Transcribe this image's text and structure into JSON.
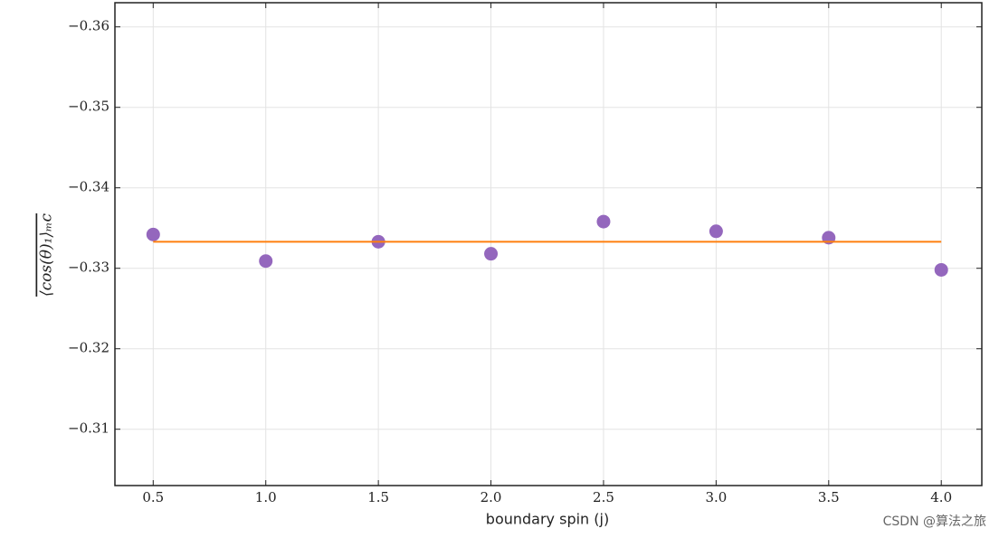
{
  "chart_data": {
    "type": "scatter",
    "xlabel": "boundary spin (j)",
    "ylabel": "⟨cos(θ)₁⟩ₘc",
    "watermark": "CSDN @算法之旅",
    "series": [
      {
        "color": "#9467bd",
        "style": "points",
        "x": [
          0.5,
          1.0,
          1.5,
          2.0,
          2.5,
          3.0,
          3.5,
          4.0
        ],
        "values": [
          -0.3342,
          -0.3309,
          -0.3333,
          -0.3318,
          -0.3358,
          -0.3346,
          -0.3338,
          -0.3298
        ]
      },
      {
        "color": "#ff7f0e",
        "style": "line",
        "x": [
          0.5,
          4.0
        ],
        "values": [
          -0.3333,
          -0.3333
        ]
      }
    ],
    "xlim": [
      0.33,
      4.18
    ],
    "ylim": [
      -0.303,
      -0.363
    ],
    "xticks": [
      {
        "value": 0.5,
        "label": "0.5"
      },
      {
        "value": 1,
        "label": "1.0"
      },
      {
        "value": 1.5,
        "label": "1.5"
      },
      {
        "value": 2,
        "label": "2.0"
      },
      {
        "value": 2.5,
        "label": "2.5"
      },
      {
        "value": 3,
        "label": "3.0"
      },
      {
        "value": 3.5,
        "label": "3.5"
      },
      {
        "value": 4,
        "label": "4.0"
      }
    ],
    "yticks": [
      {
        "value": -0.36,
        "label": "−0.36"
      },
      {
        "value": -0.35,
        "label": "−0.35"
      },
      {
        "value": -0.34,
        "label": "−0.34"
      },
      {
        "value": -0.33,
        "label": "−0.33"
      },
      {
        "value": -0.32,
        "label": "−0.32"
      },
      {
        "value": -0.31,
        "label": "−0.31"
      }
    ],
    "grid": true
  }
}
